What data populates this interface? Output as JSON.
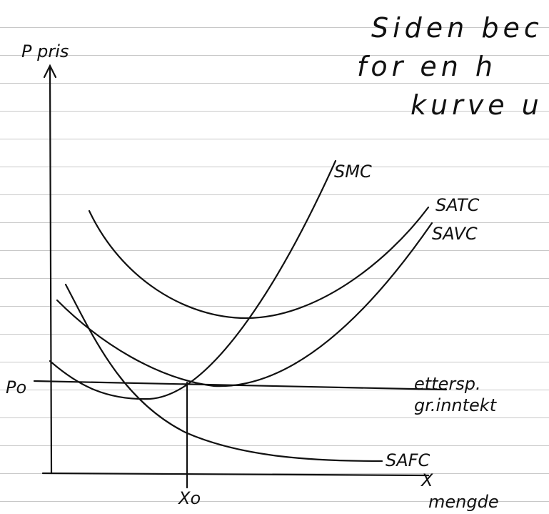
{
  "text_lines": [
    "Siden bec",
    "for en h",
    "kurve u"
  ],
  "axis": {
    "y_label": "P pris",
    "x_label": "X",
    "x_unit": "mengde",
    "p0": "Po",
    "x0": "Xo"
  },
  "curves": {
    "smc": "SMC",
    "satc": "SATC",
    "savc": "SAVC",
    "safc": "SAFC"
  },
  "demand": [
    "ettersp.",
    "gr.inntekt"
  ]
}
